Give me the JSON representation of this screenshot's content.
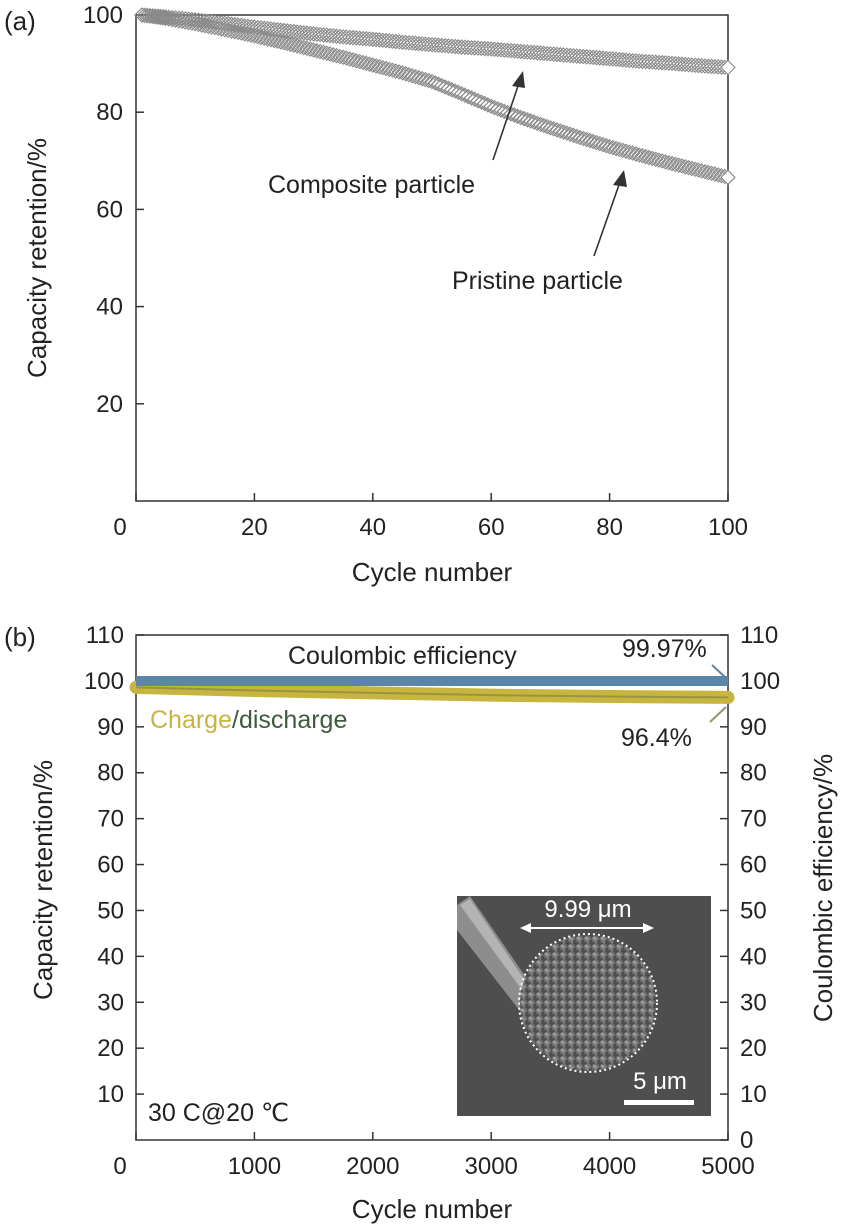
{
  "chart_data": [
    {
      "panel_label": "(a)",
      "type": "scatter",
      "xlabel": "Cycle number",
      "ylabel": "Capacity retention/%",
      "xlim": [
        0,
        100
      ],
      "ylim": [
        0,
        100
      ],
      "xticks": [
        "0",
        "20",
        "40",
        "60",
        "80",
        "100"
      ],
      "yticks": [
        "20",
        "40",
        "60",
        "80",
        "100"
      ],
      "marker": "open-diamond",
      "series": [
        {
          "name": "Composite particle",
          "color": "#8a8a8a",
          "x": [
            1,
            5,
            10,
            15,
            20,
            25,
            30,
            35,
            40,
            45,
            50,
            55,
            60,
            65,
            70,
            75,
            80,
            85,
            90,
            95,
            100
          ],
          "y": [
            100,
            99.6,
            99,
            98.3,
            97.5,
            96.8,
            96.1,
            95.5,
            95,
            94.4,
            93.9,
            93.4,
            93,
            92.5,
            92,
            91.5,
            91,
            90.5,
            90.1,
            89.6,
            89.2
          ]
        },
        {
          "name": "Pristine particle",
          "color": "#8a8a8a",
          "x": [
            1,
            5,
            10,
            15,
            20,
            25,
            30,
            35,
            40,
            45,
            50,
            55,
            60,
            65,
            70,
            75,
            80,
            85,
            90,
            95,
            100
          ],
          "y": [
            100,
            99.3,
            98.2,
            97,
            95.7,
            94.3,
            92.8,
            91.3,
            89.7,
            88.1,
            86.3,
            83.8,
            81.2,
            78.9,
            76.8,
            74.8,
            72.9,
            71.2,
            69.6,
            68.1,
            66.6
          ]
        }
      ],
      "annotations": [
        "Composite particle",
        "Pristine particle"
      ]
    },
    {
      "panel_label": "(b)",
      "type": "line",
      "xlabel": "Cycle number",
      "ylabel": "Capacity retention/%",
      "y2label": "Coulombic efficiency/%",
      "xlim": [
        0,
        5000
      ],
      "ylim": [
        0,
        110
      ],
      "y2lim": [
        0,
        110
      ],
      "xticks": [
        "0",
        "1000",
        "2000",
        "3000",
        "4000",
        "5000"
      ],
      "yticks": [
        "10",
        "20",
        "30",
        "40",
        "50",
        "60",
        "70",
        "80",
        "90",
        "100",
        "110"
      ],
      "y2ticks": [
        "0",
        "10",
        "20",
        "30",
        "40",
        "50",
        "60",
        "70",
        "80",
        "90",
        "100",
        "110"
      ],
      "series": [
        {
          "name": "Coulombic efficiency",
          "color": "#5b86a8",
          "axis": "right",
          "x": [
            0,
            5000
          ],
          "y": [
            99.97,
            99.97
          ]
        },
        {
          "name": "Charge/discharge",
          "color": "#c7b540",
          "axis": "left",
          "x": [
            0,
            1000,
            2000,
            3000,
            4000,
            5000
          ],
          "y": [
            98.6,
            97.9,
            97.4,
            96.9,
            96.6,
            96.4
          ]
        }
      ],
      "legend_text": {
        "coulombic": "Coulombic efficiency",
        "charge": "Charge",
        "slash": "/",
        "discharge": "discharge"
      },
      "end_labels": {
        "ce": "99.97%",
        "cap": "96.4%"
      },
      "condition": "30 C@20 ℃",
      "inset": {
        "diameter_label": "9.99 μm",
        "scale_bar_label": "5 μm"
      }
    }
  ],
  "colors": {
    "ce": "#5b86a8",
    "charge": "#c7b540",
    "discharge": "#3e5a3f",
    "cap_label": "#8a9a6a",
    "marker": "#8a8a8a"
  }
}
